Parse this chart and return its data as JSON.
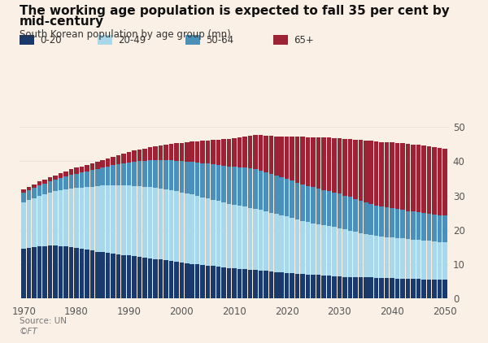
{
  "title_line1": "The working age population is expected to fall 35 per cent by",
  "title_line2": "mid-century",
  "subtitle": "South Korean population by age group (mn)",
  "source_line1": "Source: UN",
  "source_line2": "©FT",
  "background_color": "#FAF0E6",
  "colors": {
    "0-20": "#1a3a6b",
    "20-49": "#a8d8ea",
    "50-64": "#4a90b8",
    "65+": "#9b2335"
  },
  "years": [
    1970,
    1971,
    1972,
    1973,
    1974,
    1975,
    1976,
    1977,
    1978,
    1979,
    1980,
    1981,
    1982,
    1983,
    1984,
    1985,
    1986,
    1987,
    1988,
    1989,
    1990,
    1991,
    1992,
    1993,
    1994,
    1995,
    1996,
    1997,
    1998,
    1999,
    2000,
    2001,
    2002,
    2003,
    2004,
    2005,
    2006,
    2007,
    2008,
    2009,
    2010,
    2011,
    2012,
    2013,
    2014,
    2015,
    2016,
    2017,
    2018,
    2019,
    2020,
    2021,
    2022,
    2023,
    2024,
    2025,
    2026,
    2027,
    2028,
    2029,
    2030,
    2031,
    2032,
    2033,
    2034,
    2035,
    2036,
    2037,
    2038,
    2039,
    2040,
    2041,
    2042,
    2043,
    2044,
    2045,
    2046,
    2047,
    2048,
    2049,
    2050
  ],
  "data_0_20": [
    14.5,
    14.8,
    15.0,
    15.2,
    15.3,
    15.4,
    15.4,
    15.3,
    15.2,
    15.0,
    14.8,
    14.5,
    14.2,
    13.9,
    13.6,
    13.5,
    13.3,
    13.1,
    12.9,
    12.7,
    12.5,
    12.3,
    12.1,
    11.9,
    11.7,
    11.5,
    11.3,
    11.1,
    10.9,
    10.7,
    10.5,
    10.3,
    10.1,
    9.9,
    9.7,
    9.6,
    9.4,
    9.2,
    9.0,
    8.8,
    8.7,
    8.6,
    8.5,
    8.4,
    8.3,
    8.2,
    8.0,
    7.8,
    7.6,
    7.5,
    7.4,
    7.3,
    7.2,
    7.1,
    7.0,
    6.9,
    6.8,
    6.7,
    6.6,
    6.5,
    6.4,
    6.3,
    6.3,
    6.2,
    6.2,
    6.1,
    6.1,
    6.0,
    6.0,
    5.9,
    5.9,
    5.8,
    5.8,
    5.7,
    5.7,
    5.7,
    5.6,
    5.6,
    5.6,
    5.5,
    5.5
  ],
  "data_20_49": [
    13.5,
    13.8,
    14.2,
    14.6,
    15.0,
    15.4,
    15.8,
    16.2,
    16.6,
    17.0,
    17.4,
    17.8,
    18.2,
    18.7,
    19.1,
    19.4,
    19.7,
    19.9,
    20.1,
    20.3,
    20.4,
    20.5,
    20.6,
    20.6,
    20.7,
    20.7,
    20.7,
    20.7,
    20.6,
    20.5,
    20.4,
    20.3,
    20.2,
    20.0,
    19.8,
    19.6,
    19.4,
    19.2,
    19.0,
    18.8,
    18.6,
    18.4,
    18.2,
    18.0,
    17.8,
    17.6,
    17.4,
    17.2,
    17.0,
    16.8,
    16.5,
    16.2,
    15.8,
    15.5,
    15.2,
    15.0,
    14.8,
    14.6,
    14.5,
    14.3,
    14.1,
    13.8,
    13.5,
    13.2,
    12.9,
    12.7,
    12.5,
    12.3,
    12.1,
    12.0,
    11.9,
    11.8,
    11.7,
    11.6,
    11.5,
    11.4,
    11.3,
    11.2,
    11.1,
    11.0,
    10.9
  ],
  "data_50_64": [
    2.8,
    2.9,
    3.0,
    3.1,
    3.2,
    3.3,
    3.4,
    3.6,
    3.8,
    4.0,
    4.2,
    4.4,
    4.6,
    4.8,
    5.0,
    5.2,
    5.5,
    5.8,
    6.1,
    6.4,
    6.7,
    7.0,
    7.3,
    7.5,
    7.8,
    8.0,
    8.2,
    8.5,
    8.7,
    8.9,
    9.1,
    9.3,
    9.5,
    9.7,
    9.9,
    10.1,
    10.3,
    10.5,
    10.7,
    10.9,
    11.1,
    11.3,
    11.4,
    11.5,
    11.6,
    11.5,
    11.4,
    11.3,
    11.2,
    11.1,
    11.0,
    10.9,
    10.8,
    10.7,
    10.6,
    10.5,
    10.4,
    10.3,
    10.2,
    10.1,
    10.0,
    9.9,
    9.8,
    9.6,
    9.4,
    9.2,
    9.0,
    8.8,
    8.7,
    8.6,
    8.5,
    8.4,
    8.3,
    8.2,
    8.1,
    8.0,
    7.9,
    7.8,
    7.7,
    7.7,
    7.7
  ],
  "data_65p": [
    1.0,
    1.1,
    1.1,
    1.2,
    1.2,
    1.3,
    1.3,
    1.4,
    1.5,
    1.6,
    1.7,
    1.8,
    1.9,
    2.0,
    2.1,
    2.2,
    2.4,
    2.5,
    2.7,
    2.9,
    3.1,
    3.3,
    3.5,
    3.7,
    3.9,
    4.1,
    4.4,
    4.6,
    4.9,
    5.1,
    5.4,
    5.7,
    5.9,
    6.2,
    6.5,
    6.8,
    7.1,
    7.4,
    7.7,
    8.0,
    8.3,
    8.7,
    9.1,
    9.5,
    9.9,
    10.3,
    10.7,
    11.1,
    11.5,
    11.9,
    12.3,
    12.8,
    13.3,
    13.8,
    14.2,
    14.6,
    15.0,
    15.3,
    15.6,
    15.9,
    16.2,
    16.5,
    16.9,
    17.3,
    17.7,
    18.0,
    18.3,
    18.6,
    18.8,
    19.0,
    19.2,
    19.3,
    19.4,
    19.5,
    19.6,
    19.7,
    19.7,
    19.7,
    19.7,
    19.6,
    19.5
  ],
  "ylim": [
    0,
    52
  ],
  "yticks": [
    0,
    10,
    20,
    30,
    40,
    50
  ],
  "xticks": [
    1970,
    1980,
    1990,
    2000,
    2010,
    2020,
    2030,
    2040,
    2050
  ],
  "bar_width": 0.85
}
